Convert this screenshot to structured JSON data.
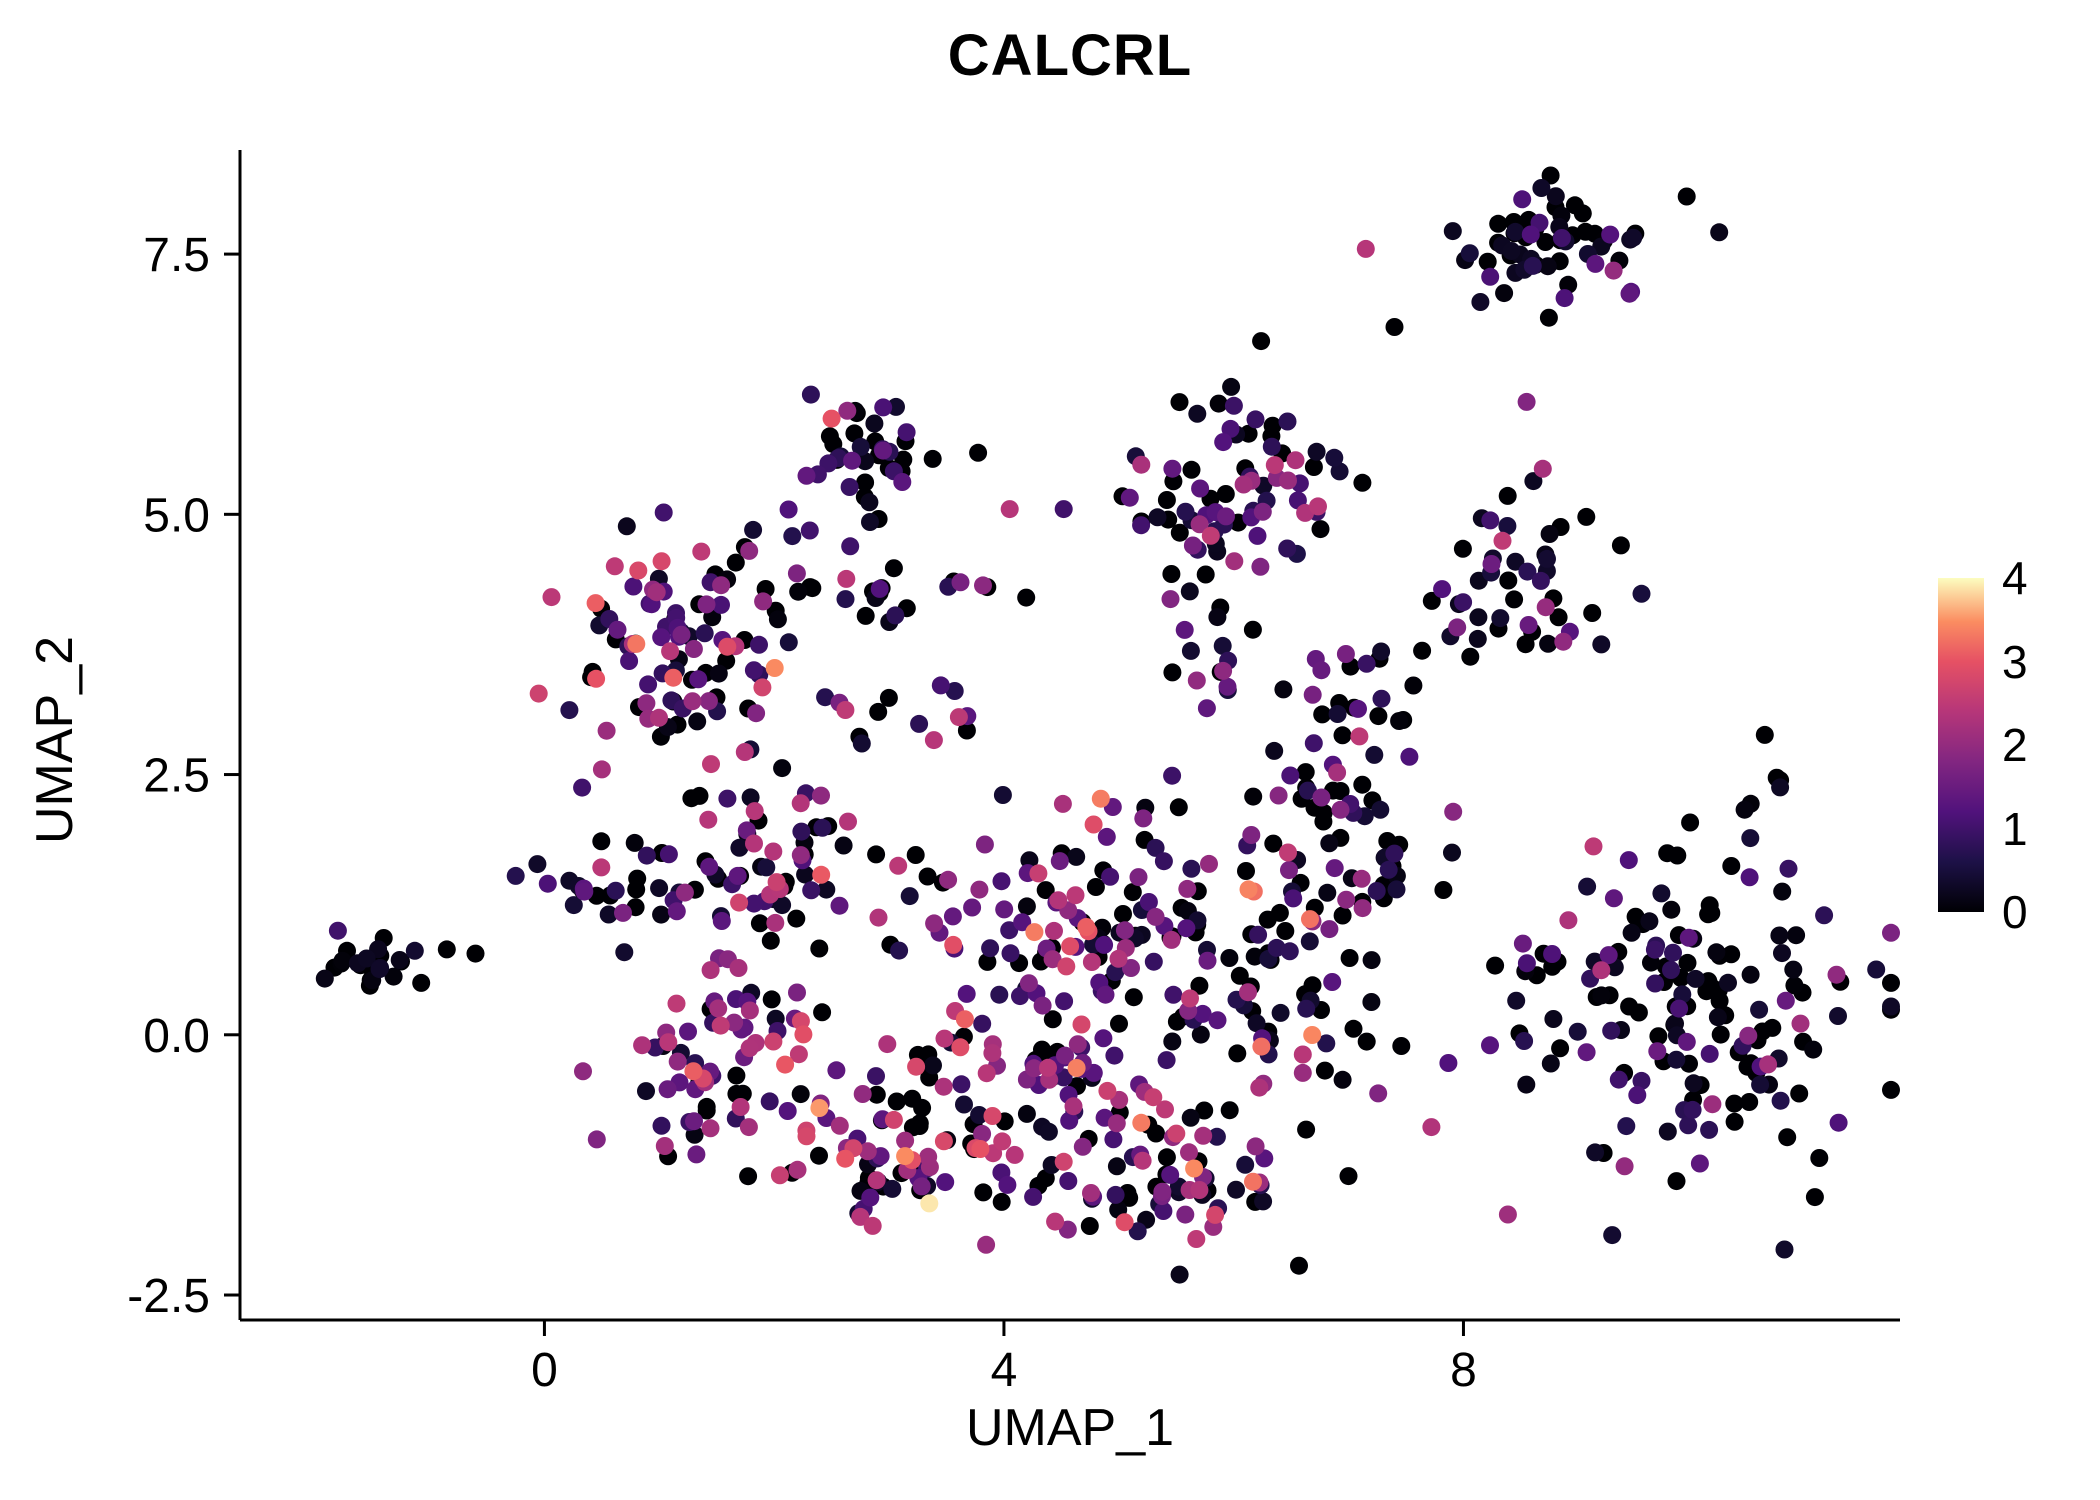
{
  "chart_data": {
    "type": "scatter",
    "title": "CALCRL",
    "xlabel": "UMAP_1",
    "ylabel": "UMAP_2",
    "xlim": [
      -2.65,
      11.8
    ],
    "ylim": [
      -2.74,
      8.5
    ],
    "grid": false,
    "x_ticks": [
      {
        "value": 0,
        "label": "0"
      },
      {
        "value": 4,
        "label": "4"
      },
      {
        "value": 8,
        "label": "8"
      }
    ],
    "y_ticks": [
      {
        "value": -2.5,
        "label": "-2.5"
      },
      {
        "value": 0,
        "label": "0.0"
      },
      {
        "value": 2.5,
        "label": "2.5"
      },
      {
        "value": 5,
        "label": "5.0"
      },
      {
        "value": 7.5,
        "label": "7.5"
      }
    ],
    "colorbar": {
      "position": "right",
      "min": 0,
      "max": 4,
      "tick_values": [
        4,
        3,
        2,
        1,
        0
      ],
      "tick_labels": [
        "4",
        "3",
        "2",
        "1",
        "0"
      ]
    },
    "colormap_name": "magma",
    "colormap_stops": [
      [
        0.0,
        "#000004"
      ],
      [
        0.15,
        "#1d1147"
      ],
      [
        0.3,
        "#51127c"
      ],
      [
        0.45,
        "#822681"
      ],
      [
        0.6,
        "#b63679"
      ],
      [
        0.75,
        "#e65164"
      ],
      [
        0.87,
        "#fb8d61"
      ],
      [
        1.0,
        "#fcfdbf"
      ]
    ],
    "point_radius_px": 9,
    "seed": 20240613,
    "clusters": [
      {
        "name": "far-left-islet",
        "cx": -1.45,
        "cy": 0.68,
        "sx": 0.2,
        "sy": 0.13,
        "n": 24,
        "level_weights": [
          0.9,
          0.1,
          0.0,
          0.0,
          0
        ]
      },
      {
        "name": "top-right",
        "cx": 8.7,
        "cy": 7.55,
        "sx": 0.5,
        "sy": 0.3,
        "n": 62,
        "level_weights": [
          0.8,
          0.16,
          0.04,
          0.0,
          0
        ]
      },
      {
        "name": "right-upper",
        "cx": 8.5,
        "cy": 4.3,
        "sx": 0.45,
        "sy": 0.45,
        "n": 46,
        "level_weights": [
          0.72,
          0.2,
          0.08,
          0.0,
          0
        ]
      },
      {
        "name": "right-large",
        "cx": 10.0,
        "cy": 0.25,
        "sx": 0.78,
        "sy": 0.82,
        "n": 168,
        "level_weights": [
          0.72,
          0.22,
          0.06,
          0.0,
          0
        ]
      },
      {
        "name": "top-middle",
        "cx": 2.85,
        "cy": 5.55,
        "sx": 0.3,
        "sy": 0.38,
        "n": 38,
        "level_weights": [
          0.62,
          0.3,
          0.08,
          0.0,
          0
        ]
      },
      {
        "name": "upper-center",
        "cx": 5.95,
        "cy": 5.2,
        "sx": 0.48,
        "sy": 0.45,
        "n": 78,
        "level_weights": [
          0.5,
          0.36,
          0.14,
          0.0,
          0
        ]
      },
      {
        "name": "left-dense",
        "cx": 1.2,
        "cy": 3.8,
        "sx": 0.45,
        "sy": 0.58,
        "n": 95,
        "level_weights": [
          0.3,
          0.32,
          0.28,
          0.1,
          0
        ]
      },
      {
        "name": "mid-band",
        "cx": 3.0,
        "cy": 4.28,
        "sx": 0.6,
        "sy": 0.13,
        "n": 22,
        "level_weights": [
          0.8,
          0.12,
          0.08,
          0.0,
          0
        ]
      },
      {
        "name": "left-bridge",
        "cx": 0.75,
        "cy": 1.5,
        "sx": 0.38,
        "sy": 0.28,
        "n": 28,
        "level_weights": [
          0.65,
          0.25,
          0.1,
          0.0,
          0
        ]
      },
      {
        "name": "center-upper-left",
        "cx": 2.1,
        "cy": 1.6,
        "sx": 0.55,
        "sy": 0.5,
        "n": 65,
        "level_weights": [
          0.45,
          0.3,
          0.2,
          0.05,
          0
        ]
      },
      {
        "name": "lower-left",
        "cx": 1.65,
        "cy": -0.3,
        "sx": 0.48,
        "sy": 0.48,
        "n": 75,
        "level_weights": [
          0.3,
          0.3,
          0.28,
          0.12,
          0
        ]
      },
      {
        "name": "bottom-center-left",
        "cx": 3.2,
        "cy": -1.1,
        "sx": 0.52,
        "sy": 0.42,
        "n": 70,
        "level_weights": [
          0.35,
          0.3,
          0.25,
          0.1,
          0
        ]
      },
      {
        "name": "center",
        "cx": 4.5,
        "cy": -0.2,
        "sx": 0.65,
        "sy": 0.5,
        "n": 95,
        "level_weights": [
          0.35,
          0.3,
          0.25,
          0.1,
          0
        ]
      },
      {
        "name": "bottom-center-right",
        "cx": 5.5,
        "cy": -1.4,
        "sx": 0.5,
        "sy": 0.36,
        "n": 55,
        "level_weights": [
          0.42,
          0.3,
          0.2,
          0.08,
          0
        ]
      },
      {
        "name": "center-mid",
        "cx": 4.8,
        "cy": 1.2,
        "sx": 0.75,
        "sy": 0.5,
        "n": 105,
        "level_weights": [
          0.4,
          0.28,
          0.24,
          0.08,
          0
        ]
      },
      {
        "name": "center-right-column",
        "cx": 6.6,
        "cy": 0.4,
        "sx": 0.4,
        "sy": 0.75,
        "n": 70,
        "level_weights": [
          0.55,
          0.3,
          0.12,
          0.03,
          0
        ]
      },
      {
        "name": "center-right-upper",
        "cx": 7.1,
        "cy": 1.9,
        "sx": 0.35,
        "sy": 0.4,
        "n": 40,
        "level_weights": [
          0.55,
          0.3,
          0.15,
          0.0,
          0
        ]
      },
      {
        "name": "bridge-right",
        "cx": 7.1,
        "cy": 3.2,
        "sx": 0.35,
        "sy": 0.38,
        "n": 28,
        "level_weights": [
          0.7,
          0.25,
          0.05,
          0.0,
          0
        ]
      },
      {
        "name": "connector-left-top",
        "cx": 1.95,
        "cy": 4.85,
        "sx": 0.2,
        "sy": 0.25,
        "n": 8,
        "level_weights": [
          0.5,
          0.3,
          0.2,
          0.0,
          0
        ]
      },
      {
        "name": "connector-center",
        "cx": 3.2,
        "cy": 3.1,
        "sx": 0.3,
        "sy": 0.3,
        "n": 12,
        "level_weights": [
          0.4,
          0.3,
          0.25,
          0.05,
          0
        ]
      },
      {
        "name": "connector-mid-right",
        "cx": 5.9,
        "cy": 3.6,
        "sx": 0.35,
        "sy": 0.3,
        "n": 15,
        "level_weights": [
          0.55,
          0.3,
          0.15,
          0.0,
          0
        ]
      }
    ],
    "highlight_points": [
      [
        -0.85,
        0.82,
        0
      ],
      [
        -0.6,
        0.78,
        0
      ],
      [
        7.4,
        6.8,
        0
      ],
      [
        7.15,
        7.55,
        2.4
      ],
      [
        8.55,
        6.08,
        1.8
      ],
      [
        2.5,
        5.92,
        3.0
      ],
      [
        2.32,
        6.15,
        0.8
      ],
      [
        4.05,
        5.05,
        2.4
      ],
      [
        4.52,
        5.05,
        1.0
      ],
      [
        0.45,
        3.42,
        3.0
      ],
      [
        1.02,
        4.55,
        2.8
      ],
      [
        0.5,
        2.55,
        2.2
      ],
      [
        1.45,
        2.6,
        2.5
      ],
      [
        3.35,
        -1.62,
        3.9
      ],
      [
        5.05,
        -1.8,
        2.9
      ],
      [
        9.2,
        0.62,
        2.3
      ],
      [
        4.78,
        2.02,
        2.9
      ],
      [
        4.3,
        1.55,
        2.6
      ],
      [
        3.62,
        -0.12,
        2.9
      ],
      [
        3.9,
        -0.78,
        2.8
      ],
      [
        4.52,
        -1.22,
        2.7
      ],
      [
        1.38,
        -0.42,
        2.8
      ],
      [
        2.28,
        -0.92,
        2.7
      ],
      [
        5.62,
        0.35,
        2.5
      ],
      [
        5.3,
        -0.6,
        2.6
      ],
      [
        2.62,
        3.12,
        2.5
      ],
      [
        6.9,
        2.52,
        2.2
      ],
      [
        6.55,
        4.62,
        0.6
      ],
      [
        2.05,
        -1.35,
        2.6
      ],
      [
        2.75,
        -1.75,
        2.4
      ],
      [
        1.15,
        0.3,
        2.5
      ],
      [
        0.85,
        -0.1,
        2.3
      ]
    ]
  }
}
